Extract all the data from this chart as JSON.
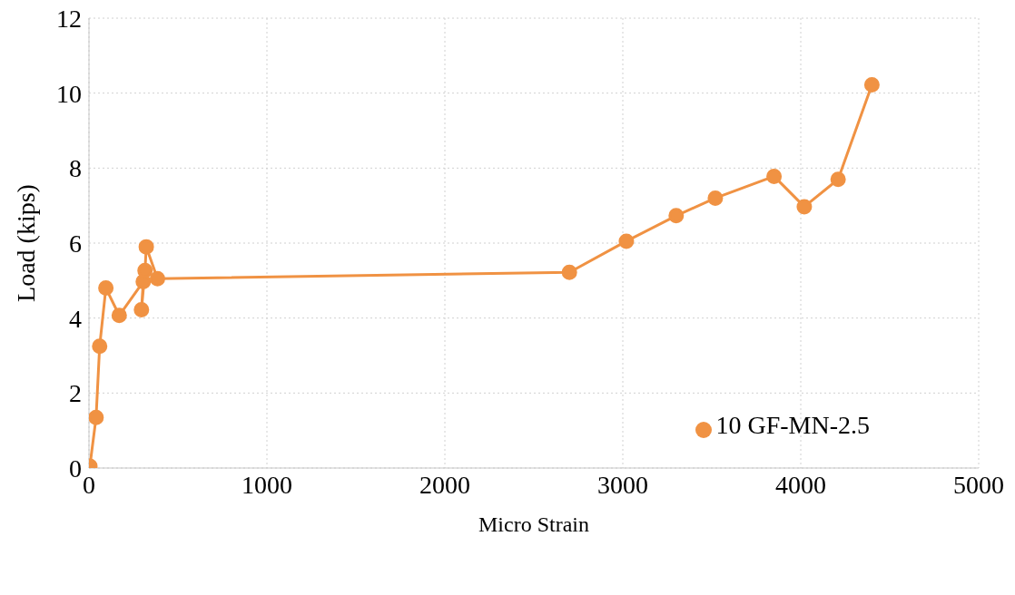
{
  "chart_data": {
    "type": "line",
    "xlabel": "Micro Strain",
    "ylabel": "Load (kips)",
    "xlim": [
      0,
      5000
    ],
    "xticks": [
      0,
      1000,
      2000,
      3000,
      4000,
      5000
    ],
    "ylim": [
      0,
      12
    ],
    "yticks": [
      0,
      2,
      4,
      6,
      8,
      10,
      12
    ],
    "grid": true,
    "legend": "bottom right",
    "marker": "circle",
    "line_style": "solid",
    "x": [
      5,
      40,
      60,
      95,
      170,
      305,
      295,
      315,
      322,
      385,
      2700,
      3020,
      3300,
      3520,
      3850,
      4020,
      4210,
      4400
    ],
    "series": [
      {
        "name": "10 GF-MN-2.5",
        "color": "#f09243",
        "values": [
          0.05,
          1.35,
          3.25,
          4.8,
          4.07,
          4.97,
          4.22,
          5.27,
          5.9,
          5.05,
          5.22,
          6.05,
          6.73,
          7.2,
          7.78,
          6.97,
          7.7,
          10.22
        ]
      }
    ]
  }
}
